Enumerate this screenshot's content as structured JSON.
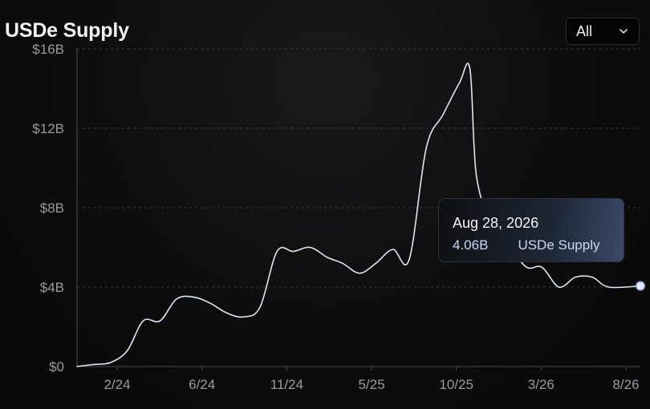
{
  "header": {
    "title": "USDe Supply"
  },
  "range_select": {
    "value": "All",
    "icon": "chevron-down-icon"
  },
  "tooltip": {
    "date": "Aug 28, 2026",
    "value": "4.06B",
    "series": "USDe Supply"
  },
  "colors": {
    "line": "#dfe6f5",
    "grid": "#3a3a3e",
    "axis": "#9a9aa0",
    "marker": "#dbe5fb"
  },
  "chart_data": {
    "type": "line",
    "title": "USDe Supply",
    "xlabel": "",
    "ylabel": "",
    "ylim": [
      0,
      16
    ],
    "y_unit": "B (USD)",
    "grid": true,
    "x_tick_labels": [
      "2/24",
      "6/24",
      "11/24",
      "5/25",
      "10/25",
      "3/26",
      "8/26"
    ],
    "y_tick_labels": [
      "$0",
      "$4B",
      "$8B",
      "$12B",
      "$16B"
    ],
    "y_tick_values": [
      0,
      4,
      8,
      12,
      16
    ],
    "series": [
      {
        "name": "USDe Supply",
        "x": [
          "2023-11",
          "2023-12",
          "2024-01",
          "2024-02",
          "2024-03",
          "2024-04",
          "2024-05",
          "2024-06",
          "2024-07",
          "2024-08",
          "2024-09",
          "2024-10",
          "2024-11",
          "2024-12",
          "2025-01",
          "2025-02",
          "2025-03",
          "2025-04",
          "2025-05",
          "2025-06",
          "2025-07",
          "2025-08",
          "2025-09",
          "2025-10",
          "2025-10-20",
          "2025-11",
          "2025-12",
          "2026-01",
          "2026-02",
          "2026-03",
          "2026-04",
          "2026-05",
          "2026-06",
          "2026-07",
          "2026-08-28"
        ],
        "values": [
          0.0,
          0.1,
          0.2,
          0.8,
          2.3,
          2.3,
          3.4,
          3.5,
          3.2,
          2.7,
          2.5,
          3.0,
          5.8,
          5.8,
          6.0,
          5.5,
          5.2,
          4.7,
          5.2,
          5.9,
          5.4,
          11.0,
          12.7,
          14.3,
          15.0,
          9.6,
          7.0,
          6.0,
          5.0,
          5.0,
          4.0,
          4.5,
          4.5,
          4.0,
          4.06
        ]
      }
    ]
  }
}
